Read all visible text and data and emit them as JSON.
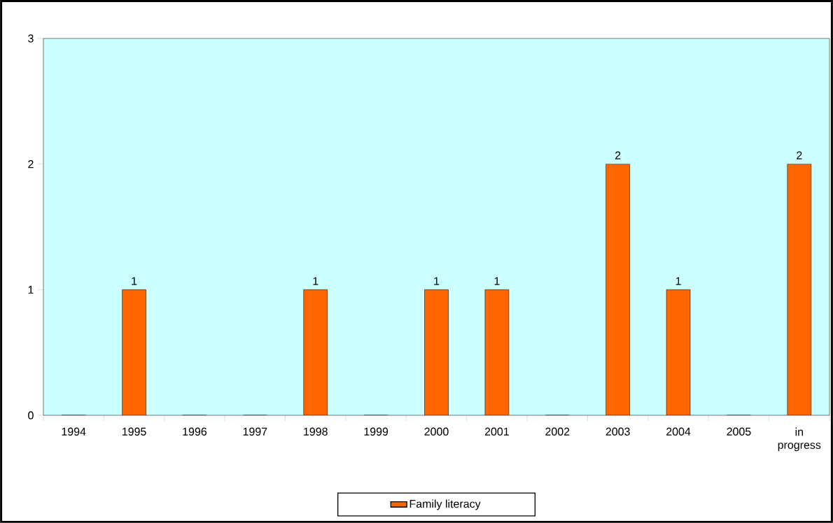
{
  "chart_data": {
    "type": "bar",
    "categories": [
      "1994",
      "1995",
      "1996",
      "1997",
      "1998",
      "1999",
      "2000",
      "2001",
      "2002",
      "2003",
      "2004",
      "2005",
      "in progress"
    ],
    "series": [
      {
        "name": "Family literacy",
        "color": "#ff6600",
        "values": [
          0,
          1,
          0,
          0,
          1,
          0,
          1,
          1,
          0,
          2,
          1,
          0,
          2
        ],
        "value_labels": [
          null,
          "1",
          null,
          null,
          "1",
          null,
          "1",
          "1",
          null,
          "2",
          "1",
          null,
          "2"
        ]
      }
    ],
    "ylim": [
      0,
      3
    ],
    "yticks": [
      0,
      1,
      2,
      3
    ],
    "legend": "bottom"
  }
}
